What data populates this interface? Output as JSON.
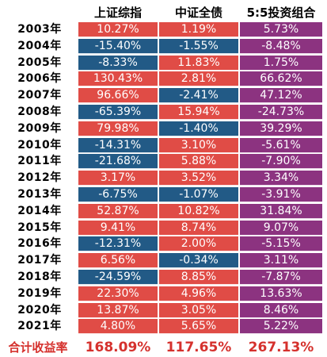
{
  "chart_data": {
    "type": "table",
    "columns": [
      "上证综指",
      "中证全债",
      "5:5投资组合"
    ],
    "rows": [
      {
        "year": "2003年",
        "values": [
          "10.27%",
          "1.19%",
          "5.73%"
        ]
      },
      {
        "year": "2004年",
        "values": [
          "-15.40%",
          "-1.55%",
          "-8.48%"
        ]
      },
      {
        "year": "2005年",
        "values": [
          "-8.33%",
          "11.83%",
          "1.75%"
        ]
      },
      {
        "year": "2006年",
        "values": [
          "130.43%",
          "2.81%",
          "66.62%"
        ]
      },
      {
        "year": "2007年",
        "values": [
          "96.66%",
          "-2.41%",
          "47.12%"
        ]
      },
      {
        "year": "2008年",
        "values": [
          "-65.39%",
          "15.94%",
          "-24.73%"
        ]
      },
      {
        "year": "2009年",
        "values": [
          "79.98%",
          "-1.40%",
          "39.29%"
        ]
      },
      {
        "year": "2010年",
        "values": [
          "-14.31%",
          "3.10%",
          "-5.61%"
        ]
      },
      {
        "year": "2011年",
        "values": [
          "-21.68%",
          "5.88%",
          "-7.90%"
        ]
      },
      {
        "year": "2012年",
        "values": [
          "3.17%",
          "3.52%",
          "3.34%"
        ]
      },
      {
        "year": "2013年",
        "values": [
          "-6.75%",
          "-1.07%",
          "-3.91%"
        ]
      },
      {
        "year": "2014年",
        "values": [
          "52.87%",
          "10.82%",
          "31.84%"
        ]
      },
      {
        "year": "2015年",
        "values": [
          "9.41%",
          "8.74%",
          "9.07%"
        ]
      },
      {
        "year": "2016年",
        "values": [
          "-12.31%",
          "2.00%",
          "-5.15%"
        ]
      },
      {
        "year": "2017年",
        "values": [
          "6.56%",
          "-0.34%",
          "3.11%"
        ]
      },
      {
        "year": "2018年",
        "values": [
          "-24.59%",
          "8.85%",
          "-7.87%"
        ]
      },
      {
        "year": "2019年",
        "values": [
          "22.30%",
          "4.96%",
          "13.63%"
        ]
      },
      {
        "year": "2020年",
        "values": [
          "13.87%",
          "3.05%",
          "8.46%"
        ]
      },
      {
        "year": "2021年",
        "values": [
          "4.80%",
          "5.65%",
          "5.22%"
        ]
      }
    ],
    "total": {
      "label": "合计收益率",
      "values": [
        "168.09%",
        "117.65%",
        "267.13%"
      ]
    }
  },
  "colors": {
    "red": "#e04c46",
    "blue": "#225a86",
    "purple": "#8c3380",
    "total_text": "#d5312d"
  }
}
